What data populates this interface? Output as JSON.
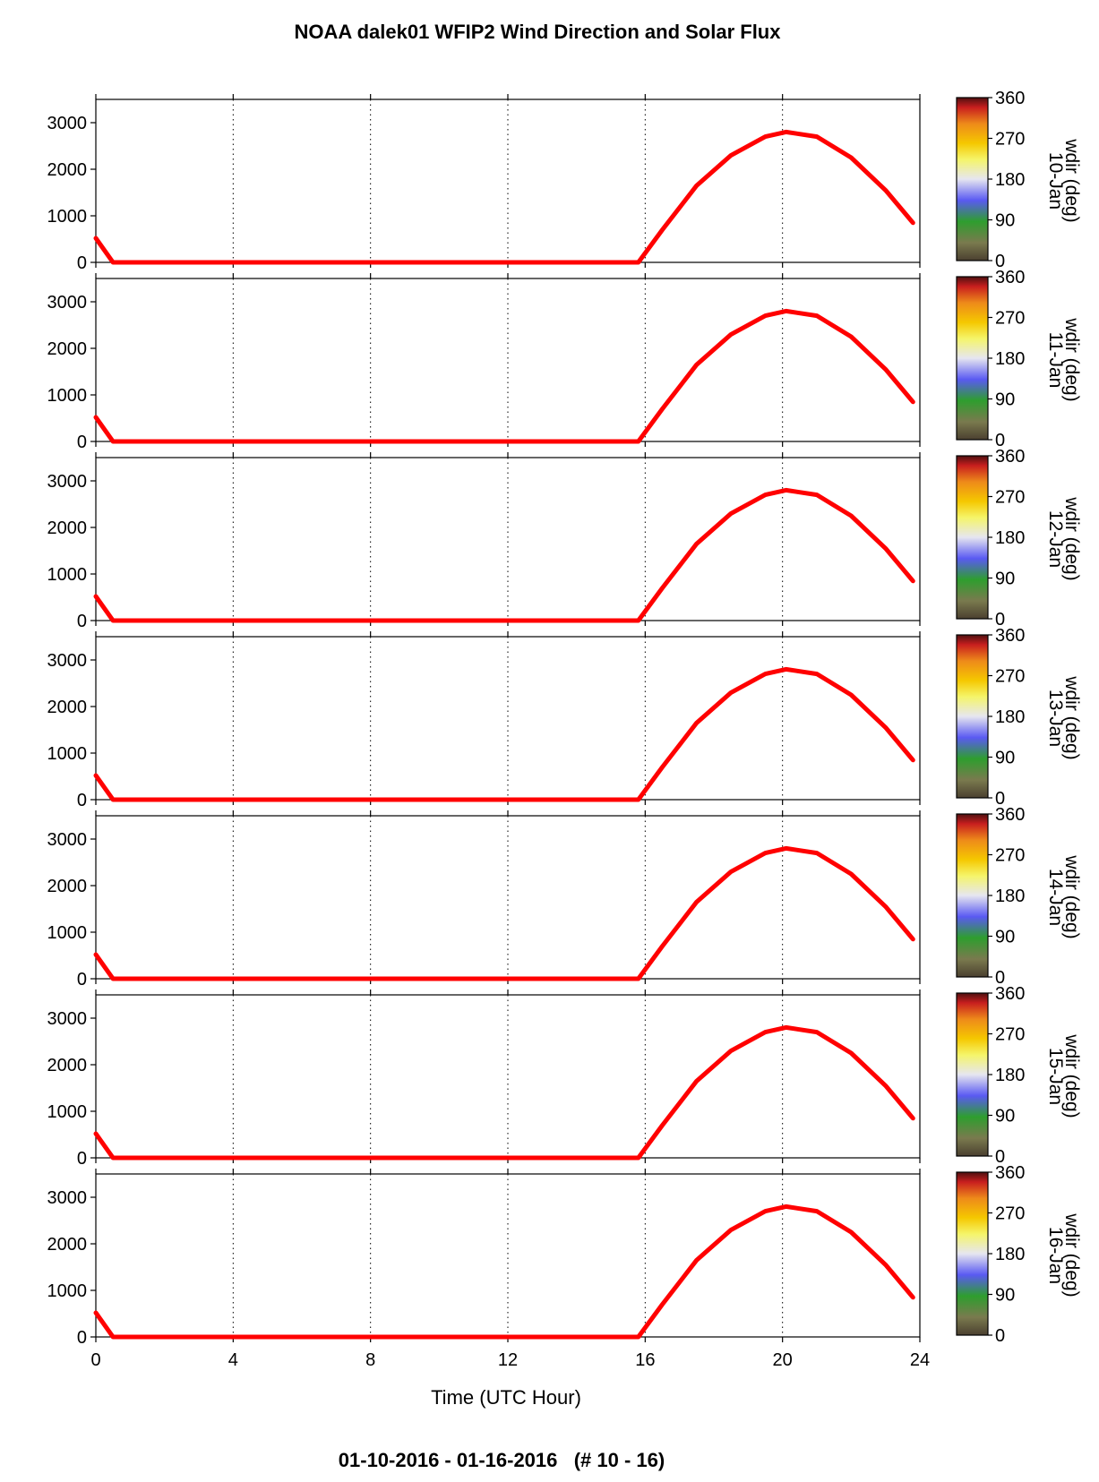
{
  "title": "NOAA dalek01 WFIP2 Wind Direction and Solar Flux",
  "footer": "01-10-2016 - 01-16-2016   (# 10 - 16)",
  "colors": {
    "solar_curve": "#ff0000",
    "colormap": [
      "#4b4030",
      "#7a7a4e",
      "#2e9e2e",
      "#5a5af2",
      "#e6e6f0",
      "#f5f56a",
      "#f5c800",
      "#ee8a1a",
      "#c81e1e",
      "#501010"
    ]
  },
  "chart_data": {
    "type": "heatmap",
    "title": "NOAA dalek01 WFIP2 Wind Direction and Solar Flux",
    "xlabel": "Time (UTC Hour)",
    "xlim": [
      0,
      24
    ],
    "xticks": [
      "0",
      "4",
      "8",
      "12",
      "16",
      "20",
      "24"
    ],
    "ylim": [
      0,
      3500
    ],
    "yticks": [
      "0",
      "1000",
      "2000",
      "3000"
    ],
    "grid": "vertical dotted lines at 4, 8, 12, 16, 20",
    "colorbar": {
      "label": "wdir (deg)",
      "range": [
        0,
        360
      ],
      "ticks": [
        "0",
        "90",
        "180",
        "270",
        "360"
      ]
    },
    "overlay": {
      "name": "solar flux",
      "color": "#ff0000",
      "x": [
        0,
        0.5,
        15.8,
        16.5,
        17.5,
        18.5,
        19.5,
        20.1,
        21,
        22,
        23,
        23.8
      ],
      "y": [
        520,
        0,
        0,
        700,
        1650,
        2300,
        2700,
        2800,
        2700,
        2250,
        1550,
        850
      ]
    },
    "panels": [
      {
        "date": "10-Jan"
      },
      {
        "date": "11-Jan"
      },
      {
        "date": "12-Jan"
      },
      {
        "date": "13-Jan"
      },
      {
        "date": "14-Jan"
      },
      {
        "date": "15-Jan"
      },
      {
        "date": "16-Jan"
      }
    ]
  }
}
